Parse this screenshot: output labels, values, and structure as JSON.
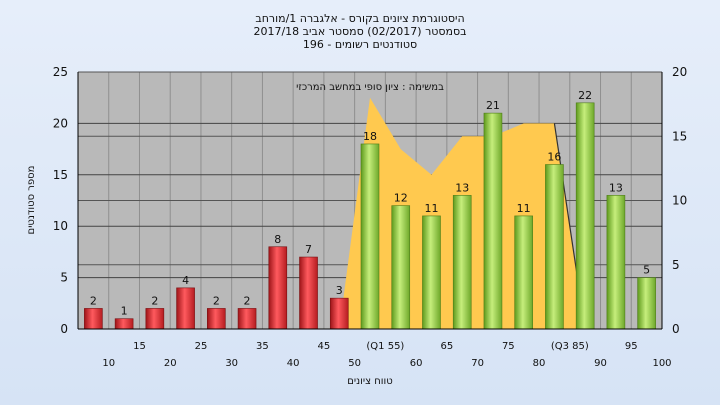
{
  "chart_data": {
    "type": "bar",
    "title": [
      "היסטוגרמת ציונים בקורס - אלגברה 1/מורחב",
      "בסמסטר  (02/2017)  סמסטר אביב 2017/18",
      "סטודנטים רשומים - 196"
    ],
    "xlabel": "טווח ציונים",
    "ylabel": "מספר סטודנטים",
    "area_label": "במשימה : ציון סופי במחשב המרכזי",
    "ylim": [
      0,
      25
    ],
    "y2lim": [
      0,
      20
    ],
    "yticks": [
      "0",
      "5",
      "10",
      "15",
      "20",
      "25"
    ],
    "y2ticks": [
      "0",
      "5",
      "10",
      "15",
      "20"
    ],
    "categories": [
      "10",
      "15",
      "20",
      "25",
      "30",
      "35",
      "40",
      "45",
      "50",
      "(Q1 55)",
      "60",
      "65",
      "70",
      "75",
      "80",
      "(Q3 85)",
      "90",
      "95",
      "100"
    ],
    "values": [
      2,
      1,
      2,
      4,
      2,
      2,
      8,
      7,
      3,
      18,
      12,
      11,
      13,
      21,
      11,
      16,
      22,
      13,
      5
    ],
    "bar_colors": [
      "red",
      "red",
      "red",
      "red",
      "red",
      "red",
      "red",
      "red",
      "red",
      "green",
      "green",
      "green",
      "green",
      "green",
      "green",
      "green",
      "green",
      "green",
      "green"
    ],
    "area_series": {
      "name": "במשימה : ציון סופי במחשב המרכזי",
      "x_start": "50",
      "values": [
        0,
        18,
        14,
        12,
        15,
        15,
        16,
        16,
        0
      ]
    },
    "colors": {
      "red": "#d8262a",
      "green": "#8cc43c",
      "area": "#ffc94f",
      "plot_bg": "#b9b9b9"
    },
    "grid": true
  }
}
